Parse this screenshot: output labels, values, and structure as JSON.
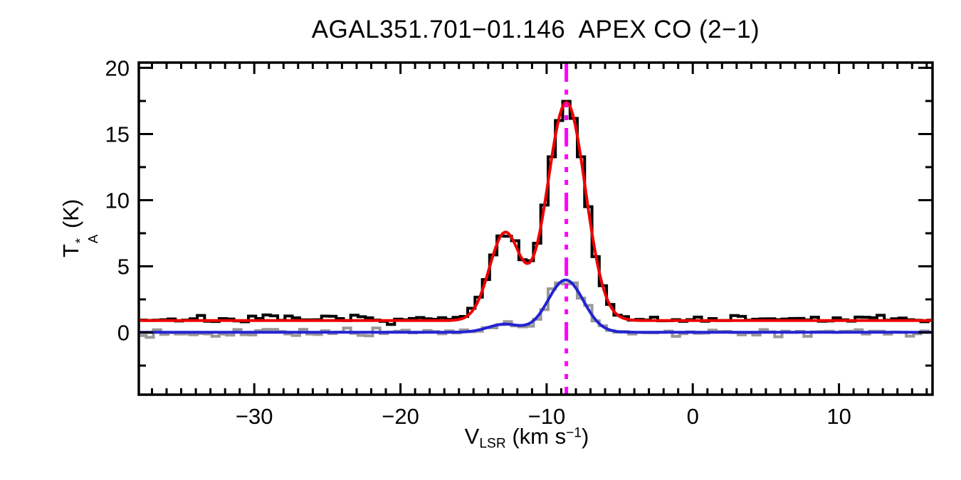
{
  "title": "AGAL351.701−01.146  APEX CO (2−1)",
  "y_axis": {
    "label_T": "T",
    "label_star": "*",
    "label_A": "A",
    "label_unit": " (K)",
    "tick_labels": [
      "0",
      "5",
      "10",
      "15",
      "20"
    ]
  },
  "x_axis": {
    "label_V": "V",
    "label_sub": "LSR",
    "label_unit_pre": " (km s",
    "label_sup": "−1",
    "label_unit_post": ")",
    "tick_labels": [
      "−30",
      "−20",
      "−10",
      "0",
      "10"
    ]
  },
  "colors": {
    "background": "#ffffff",
    "frame": "#000000",
    "text": "#000000",
    "observed": "#000000",
    "observed_fit": "#ee0000",
    "secondary": "#999999",
    "secondary_fit": "#2323d2",
    "velocity_marker": "#ff00ff"
  },
  "chart_data": {
    "type": "line",
    "title": "AGAL351.701−01.146  APEX CO (2−1)",
    "xlabel": "V_LSR (km s^−1)",
    "ylabel": "T_A^* (K)",
    "xlim": [
      -37.9,
      16.4
    ],
    "ylim": [
      -4.7,
      20.4
    ],
    "x_major_ticks": [
      -30,
      -20,
      -10,
      0,
      10
    ],
    "x_minor_step_kms": 1,
    "y_major_ticks": [
      0,
      5,
      10,
      15,
      20
    ],
    "y_minor_step_K": 2.5,
    "grid": false,
    "legend": false,
    "channel_width_kms": 0.5,
    "series": [
      {
        "name": "co21-observed-histogram",
        "style": "histogram",
        "color": "#000000",
        "line_width": 4,
        "baseline_K": 1.0,
        "noise_rms_K": 0.14,
        "seed": 7,
        "gaussians": [
          {
            "center_kms": -12.85,
            "amp_K": 6.4,
            "fwhm_kms": 2.5
          },
          {
            "center_kms": -8.65,
            "amp_K": 16.3,
            "fwhm_kms": 3.05
          }
        ],
        "peak_readings": [
          {
            "v_kms": -12.9,
            "T_K": 7.5
          },
          {
            "v_kms": -8.7,
            "T_K": 17.5
          }
        ]
      },
      {
        "name": "co21-gaussian-fit",
        "style": "smooth",
        "color": "#ee0000",
        "line_width": 4,
        "baseline_K": 0.9,
        "gaussians": [
          {
            "center_kms": -12.85,
            "amp_K": 6.6,
            "fwhm_kms": 2.5
          },
          {
            "center_kms": -8.65,
            "amp_K": 16.5,
            "fwhm_kms": 3.05
          }
        ]
      },
      {
        "name": "secondary-observed-histogram",
        "style": "histogram",
        "color": "#999999",
        "line_width": 4,
        "baseline_K": 0.0,
        "noise_rms_K": 0.14,
        "seed": 13,
        "gaussians": [
          {
            "center_kms": -12.9,
            "amp_K": 0.6,
            "fwhm_kms": 2.6
          },
          {
            "center_kms": -8.7,
            "amp_K": 3.95,
            "fwhm_kms": 2.85
          }
        ],
        "peak_readings": [
          {
            "v_kms": -8.7,
            "T_K": 4.2
          }
        ]
      },
      {
        "name": "secondary-gaussian-fit",
        "style": "smooth",
        "color": "#2323d2",
        "line_width": 4,
        "baseline_K": 0.02,
        "gaussians": [
          {
            "center_kms": -12.9,
            "amp_K": 0.6,
            "fwhm_kms": 2.6
          },
          {
            "center_kms": -8.7,
            "amp_K": 3.95,
            "fwhm_kms": 2.85
          }
        ]
      }
    ],
    "annotations": [
      {
        "type": "vline",
        "name": "systemic-velocity-marker",
        "x_kms": -8.65,
        "color": "#ff00ff",
        "style": "dash-dot-dot-dot",
        "line_width": 5
      }
    ]
  }
}
